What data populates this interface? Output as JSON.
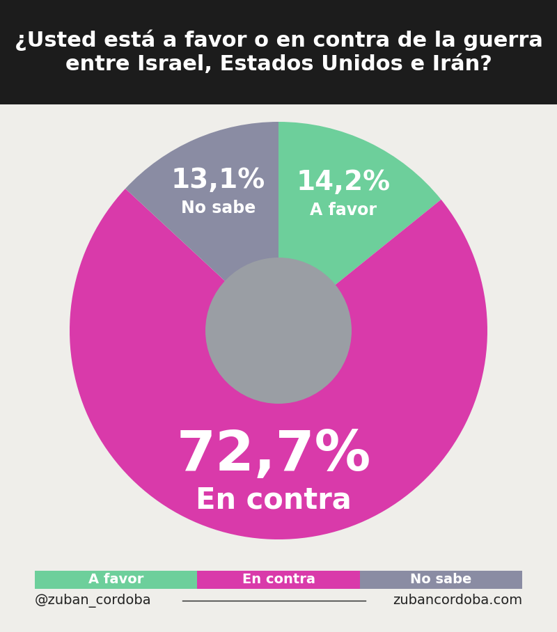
{
  "chart_data": {
    "type": "pie",
    "title": "¿Usted está a favor o en contra de la guerra entre Israel, Estados Unidos e Irán?",
    "categories": [
      "A favor",
      "En contra",
      "No sabe"
    ],
    "values": [
      14.2,
      72.7,
      13.1
    ],
    "value_labels": [
      "14,2%",
      "72,7%",
      "13,1%"
    ],
    "colors": [
      "#6dcf9b",
      "#d93aaa",
      "#8a8ca3"
    ],
    "data_labels": true,
    "legend": "lower center",
    "annotations": [
      "@zuban_cordoba",
      "zubancordoba.com"
    ]
  }
}
